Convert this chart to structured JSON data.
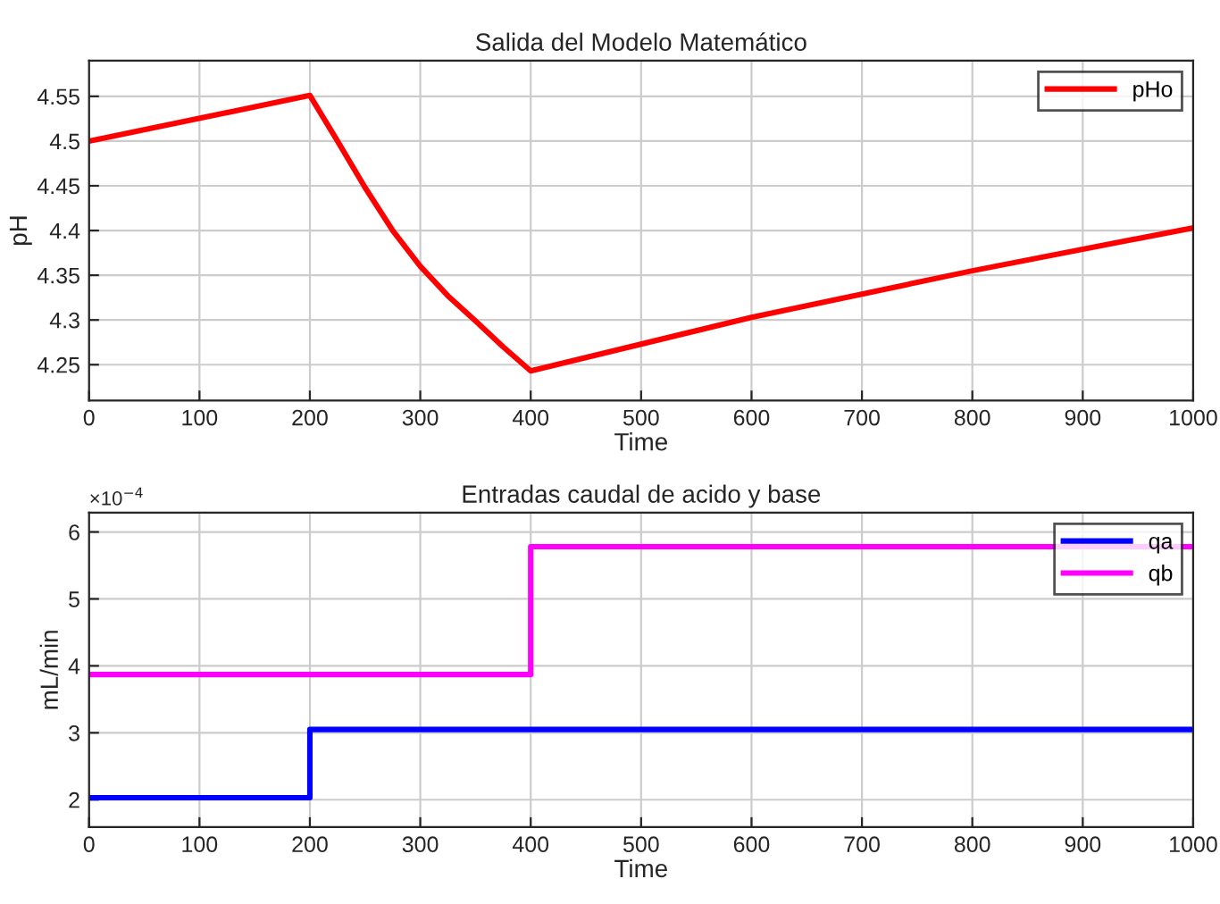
{
  "chart_data": [
    {
      "type": "line",
      "title": "Salida del Modelo Matemático",
      "xlabel": "Time",
      "ylabel": "pH",
      "xlim": [
        0,
        1000
      ],
      "xticks": [
        0,
        100,
        200,
        300,
        400,
        500,
        600,
        700,
        800,
        900,
        1000
      ],
      "ylim": [
        4.21,
        4.59
      ],
      "yticks": [
        4.25,
        4.3,
        4.35,
        4.4,
        4.45,
        4.5,
        4.55
      ],
      "grid": true,
      "legend": "top right",
      "series": [
        {
          "name": "pHo",
          "color": "#ff0000",
          "x": [
            0,
            200,
            225,
            250,
            275,
            300,
            325,
            350,
            375,
            400,
            600,
            800,
            1000
          ],
          "values": [
            4.5,
            4.551,
            4.5,
            4.448,
            4.4,
            4.36,
            4.327,
            4.299,
            4.27,
            4.243,
            4.303,
            4.355,
            4.403
          ]
        }
      ]
    },
    {
      "type": "step",
      "title": "Entradas caudal de acido y base",
      "xlabel": "Time",
      "ylabel": "mL/min",
      "annotations": [
        "×10$^{−4}$"
      ],
      "xlim": [
        0,
        1000
      ],
      "xticks": [
        0,
        100,
        200,
        300,
        400,
        500,
        600,
        700,
        800,
        900,
        1000
      ],
      "ylim": [
        1.59,
        6.29
      ],
      "yticks": [
        2,
        3,
        4,
        5,
        6
      ],
      "grid": true,
      "legend": "top right",
      "series": [
        {
          "name": "qa",
          "color": "#0000ff",
          "x": [
            0,
            200,
            1000
          ],
          "values": [
            2.03,
            3.05,
            3.05
          ]
        },
        {
          "name": "qb",
          "color": "#ff00ff",
          "x": [
            0,
            400,
            1000
          ],
          "values": [
            3.87,
            5.78,
            5.78
          ]
        }
      ]
    }
  ]
}
